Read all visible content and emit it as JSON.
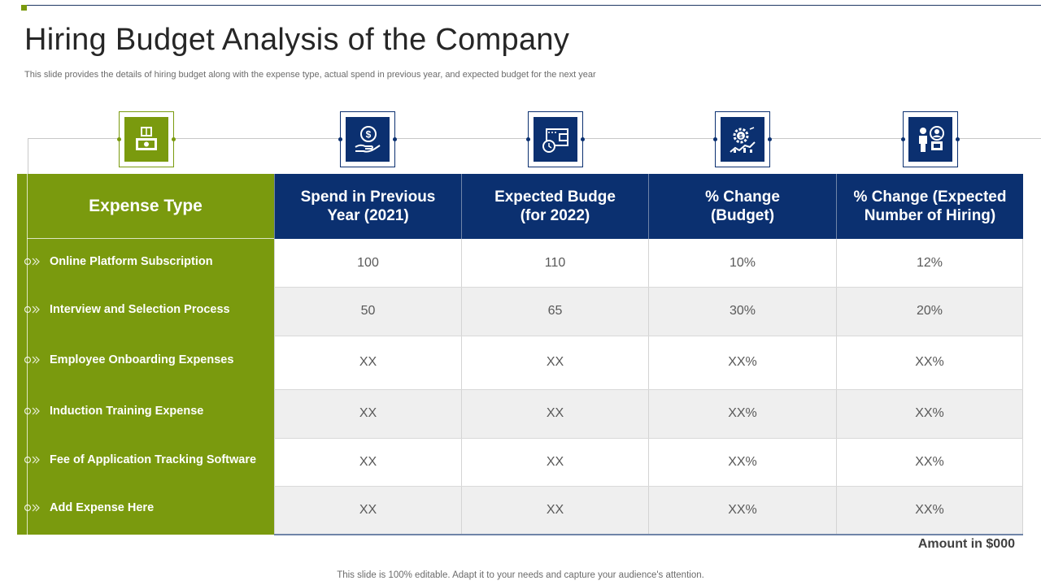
{
  "slide": {
    "title": "Hiring Budget Analysis of the Company",
    "subtitle": "This slide provides the details of hiring budget along with the expense type,  actual spend in previous year,  and expected budget for the next year",
    "unit_note": "Amount in $000",
    "footer": "This slide is 100% editable. Adapt it to your needs and capture your audience's attention."
  },
  "icons": [
    "money-box-icon",
    "dollar-hand-icon",
    "wallet-clock-icon",
    "gear-growth-icon",
    "people-hiring-icon"
  ],
  "colors": {
    "green": "#7a9a0e",
    "navy": "#0b3070",
    "row_alt": "#efefef"
  },
  "table": {
    "expense_header": "Expense Type",
    "columns": [
      "Spend in Previous\nYear (2021)",
      "Expected Budge\n(for 2022)",
      "% Change\n(Budget)",
      "% Change (Expected\nNumber of Hiring)"
    ],
    "rows": [
      {
        "label": "Online Platform Subscription",
        "values": [
          "100",
          "110",
          "10%",
          "12%"
        ]
      },
      {
        "label": "Interview and Selection Process",
        "values": [
          "50",
          "65",
          "30%",
          "20%"
        ]
      },
      {
        "label": "Employee Onboarding Expenses",
        "values": [
          "XX",
          "XX",
          "XX%",
          "XX%"
        ]
      },
      {
        "label": "Induction  Training Expense",
        "values": [
          "XX",
          "XX",
          "XX%",
          "XX%"
        ]
      },
      {
        "label": "Fee of Application  Tracking Software",
        "values": [
          "XX",
          "XX",
          "XX%",
          "XX%"
        ]
      },
      {
        "label": "Add  Expense Here",
        "values": [
          "XX",
          "XX",
          "XX%",
          "XX%"
        ]
      }
    ]
  }
}
